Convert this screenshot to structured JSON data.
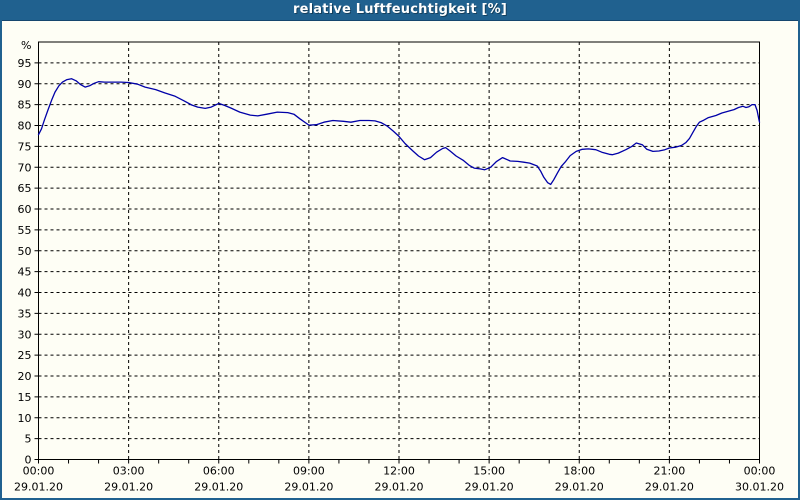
{
  "window": {
    "title": "relative Luftfeuchtigkeit [%]"
  },
  "colors": {
    "titlebar_bg": "#20618F",
    "titlebar_text": "#FFFFFF",
    "page_border": "#20618F",
    "page_bg": "#FEFEF5",
    "plot_bg": "#FEFEF5",
    "line": "#0000A8",
    "grid": "#000000",
    "axis": "#000000",
    "label_text": "#000000"
  },
  "chart_data": {
    "type": "line",
    "title": "relative Luftfeuchtigkeit [%]",
    "xlabel": "",
    "ylabel": "%",
    "ylim": [
      0,
      100
    ],
    "xlim_hours": [
      0,
      24
    ],
    "y_tick_step": 5,
    "y_tick_labels": [
      "95",
      "90",
      "85",
      "80",
      "75",
      "70",
      "65",
      "60",
      "55",
      "50",
      "45",
      "40",
      "35",
      "30",
      "25",
      "20",
      "15",
      "10",
      "5",
      "0"
    ],
    "x_minor_tick_every_hours": 1,
    "x_major_gridline_every_hours": 3,
    "grid": "dashed",
    "legend_position": "none",
    "x_labels": [
      {
        "hour": 0,
        "time": "00:00",
        "date": "29.01.20"
      },
      {
        "hour": 3,
        "time": "03:00",
        "date": "29.01.20"
      },
      {
        "hour": 6,
        "time": "06:00",
        "date": "29.01.20"
      },
      {
        "hour": 9,
        "time": "09:00",
        "date": "29.01.20"
      },
      {
        "hour": 12,
        "time": "12:00",
        "date": "29.01.20"
      },
      {
        "hour": 15,
        "time": "15:00",
        "date": "29.01.20"
      },
      {
        "hour": 18,
        "time": "18:00",
        "date": "29.01.20"
      },
      {
        "hour": 21,
        "time": "21:00",
        "date": "29.01.20"
      },
      {
        "hour": 24,
        "time": "00:00",
        "date": "30.01.20"
      }
    ],
    "series": [
      {
        "name": "relative Luftfeuchtigkeit",
        "unit": "%",
        "color": "#0000A8",
        "points": [
          [
            0.0,
            77.8
          ],
          [
            0.1,
            79.2
          ],
          [
            0.2,
            81.4
          ],
          [
            0.32,
            83.8
          ],
          [
            0.45,
            86.3
          ],
          [
            0.55,
            88.0
          ],
          [
            0.68,
            89.5
          ],
          [
            0.8,
            90.4
          ],
          [
            0.95,
            91.0
          ],
          [
            1.1,
            91.2
          ],
          [
            1.25,
            90.7
          ],
          [
            1.4,
            89.8
          ],
          [
            1.55,
            89.2
          ],
          [
            1.7,
            89.5
          ],
          [
            1.85,
            90.1
          ],
          [
            2.0,
            90.5
          ],
          [
            2.2,
            90.4
          ],
          [
            2.5,
            90.4
          ],
          [
            2.75,
            90.4
          ],
          [
            3.0,
            90.3
          ],
          [
            3.3,
            89.9
          ],
          [
            3.55,
            89.2
          ],
          [
            3.9,
            88.6
          ],
          [
            4.2,
            87.8
          ],
          [
            4.55,
            87.0
          ],
          [
            4.85,
            85.9
          ],
          [
            5.1,
            84.9
          ],
          [
            5.3,
            84.4
          ],
          [
            5.55,
            84.1
          ],
          [
            5.75,
            84.4
          ],
          [
            6.0,
            85.3
          ],
          [
            6.2,
            84.8
          ],
          [
            6.4,
            84.2
          ],
          [
            6.7,
            83.2
          ],
          [
            7.05,
            82.5
          ],
          [
            7.3,
            82.3
          ],
          [
            7.6,
            82.7
          ],
          [
            7.95,
            83.2
          ],
          [
            8.3,
            83.1
          ],
          [
            8.5,
            82.7
          ],
          [
            8.7,
            81.6
          ],
          [
            9.0,
            80.1
          ],
          [
            9.25,
            80.2
          ],
          [
            9.5,
            80.8
          ],
          [
            9.8,
            81.2
          ],
          [
            10.15,
            81.0
          ],
          [
            10.4,
            80.8
          ],
          [
            10.7,
            81.2
          ],
          [
            11.0,
            81.2
          ],
          [
            11.2,
            81.1
          ],
          [
            11.4,
            80.7
          ],
          [
            11.6,
            79.9
          ],
          [
            11.8,
            78.7
          ],
          [
            12.0,
            77.4
          ],
          [
            12.2,
            75.7
          ],
          [
            12.45,
            74.0
          ],
          [
            12.65,
            72.7
          ],
          [
            12.85,
            71.8
          ],
          [
            13.05,
            72.3
          ],
          [
            13.25,
            73.6
          ],
          [
            13.45,
            74.5
          ],
          [
            13.55,
            74.7
          ],
          [
            13.7,
            73.9
          ],
          [
            13.9,
            72.7
          ],
          [
            14.15,
            71.6
          ],
          [
            14.35,
            70.4
          ],
          [
            14.5,
            69.8
          ],
          [
            14.7,
            69.6
          ],
          [
            14.85,
            69.4
          ],
          [
            15.05,
            70.0
          ],
          [
            15.25,
            71.4
          ],
          [
            15.45,
            72.3
          ],
          [
            15.7,
            71.5
          ],
          [
            15.95,
            71.4
          ],
          [
            16.15,
            71.2
          ],
          [
            16.35,
            71.0
          ],
          [
            16.6,
            70.3
          ],
          [
            16.72,
            69.0
          ],
          [
            16.82,
            67.6
          ],
          [
            16.95,
            66.3
          ],
          [
            17.05,
            65.9
          ],
          [
            17.15,
            67.0
          ],
          [
            17.28,
            68.7
          ],
          [
            17.4,
            70.2
          ],
          [
            17.55,
            71.4
          ],
          [
            17.7,
            72.8
          ],
          [
            17.9,
            73.8
          ],
          [
            18.1,
            74.3
          ],
          [
            18.3,
            74.4
          ],
          [
            18.55,
            74.2
          ],
          [
            18.75,
            73.6
          ],
          [
            19.0,
            73.1
          ],
          [
            19.1,
            73.0
          ],
          [
            19.3,
            73.4
          ],
          [
            19.55,
            74.2
          ],
          [
            19.75,
            75.0
          ],
          [
            19.9,
            75.8
          ],
          [
            20.1,
            75.4
          ],
          [
            20.25,
            74.3
          ],
          [
            20.45,
            73.8
          ],
          [
            20.65,
            73.9
          ],
          [
            20.85,
            74.2
          ],
          [
            21.0,
            74.6
          ],
          [
            21.2,
            74.8
          ],
          [
            21.4,
            75.2
          ],
          [
            21.55,
            75.9
          ],
          [
            21.67,
            76.9
          ],
          [
            21.78,
            78.3
          ],
          [
            21.9,
            79.8
          ],
          [
            22.0,
            80.8
          ],
          [
            22.15,
            81.3
          ],
          [
            22.3,
            81.9
          ],
          [
            22.55,
            82.4
          ],
          [
            22.75,
            83.0
          ],
          [
            23.0,
            83.5
          ],
          [
            23.15,
            83.8
          ],
          [
            23.3,
            84.3
          ],
          [
            23.45,
            84.6
          ],
          [
            23.55,
            84.3
          ],
          [
            23.65,
            84.5
          ],
          [
            23.75,
            85.0
          ],
          [
            23.85,
            85.0
          ],
          [
            23.92,
            83.6
          ],
          [
            23.97,
            81.8
          ],
          [
            24.0,
            80.8
          ]
        ]
      }
    ]
  }
}
